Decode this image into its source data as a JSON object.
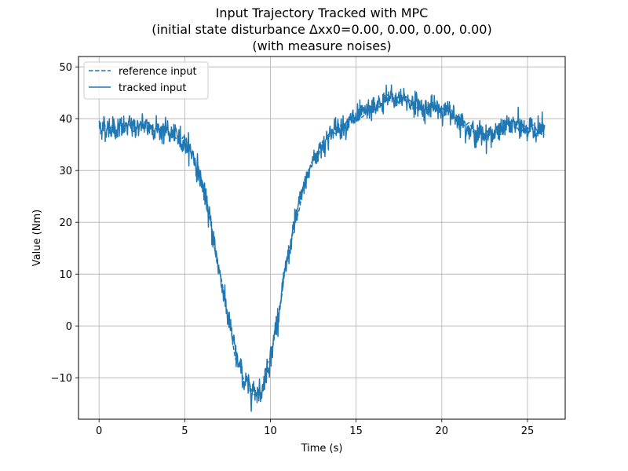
{
  "chart_data": {
    "type": "line",
    "title": "Input Trajectory Tracked with MPC",
    "subtitle_lines": [
      "(initial state disturbance Δxx0=0.00, 0.00, 0.00, 0.00)",
      "(with measure noises)"
    ],
    "xlabel": "Time (s)",
    "ylabel": "Value (Nm)",
    "xlim": [
      -1.2,
      27.2
    ],
    "ylim": [
      -18,
      52
    ],
    "xticks": [
      0,
      5,
      10,
      15,
      20,
      25
    ],
    "yticks": [
      -10,
      0,
      10,
      20,
      30,
      40,
      50
    ],
    "ytick_labels": [
      "−10",
      "0",
      "10",
      "20",
      "30",
      "40",
      "50"
    ],
    "grid": true,
    "legend_position": "top-left",
    "line_color": "#1f77b4",
    "series": [
      {
        "name": "reference input",
        "style": "dashed",
        "x": [
          0,
          1,
          2,
          3,
          4,
          5,
          5.5,
          6,
          6.5,
          7,
          7.5,
          8,
          8.5,
          9,
          9.5,
          10,
          10.5,
          11,
          11.5,
          12,
          12.5,
          13,
          13.5,
          14,
          15,
          16,
          17,
          18,
          19,
          20,
          21,
          22,
          23,
          24,
          25,
          26
        ],
        "y": [
          38.5,
          38,
          38.5,
          38.5,
          37.5,
          35.5,
          33,
          27.5,
          20,
          11,
          2,
          -6,
          -11,
          -12.5,
          -12.5,
          -6,
          3,
          13,
          21,
          27.5,
          32,
          35,
          37,
          38.5,
          40,
          42,
          44,
          43.5,
          42,
          42,
          40,
          37,
          37,
          39,
          38,
          38
        ]
      },
      {
        "name": "tracked input",
        "style": "solid",
        "x": [
          0,
          1,
          2,
          3,
          4,
          5,
          5.5,
          6,
          6.5,
          7,
          7.5,
          8,
          8.5,
          9,
          9.5,
          10,
          10.5,
          11,
          11.5,
          12,
          12.5,
          13,
          13.5,
          14,
          15,
          16,
          17,
          18,
          19,
          20,
          21,
          22,
          23,
          24,
          25,
          26
        ],
        "y": [
          38.5,
          38,
          38.5,
          38.5,
          37.5,
          35.5,
          33,
          27.5,
          20,
          11,
          2,
          -6,
          -11,
          -12.5,
          -12.5,
          -6,
          3,
          13,
          21,
          27.5,
          32,
          35,
          37,
          38.5,
          40,
          42,
          44,
          43.5,
          42,
          42,
          40,
          37,
          37,
          39,
          38,
          38
        ],
        "noise_amplitude": 1.6
      }
    ]
  }
}
